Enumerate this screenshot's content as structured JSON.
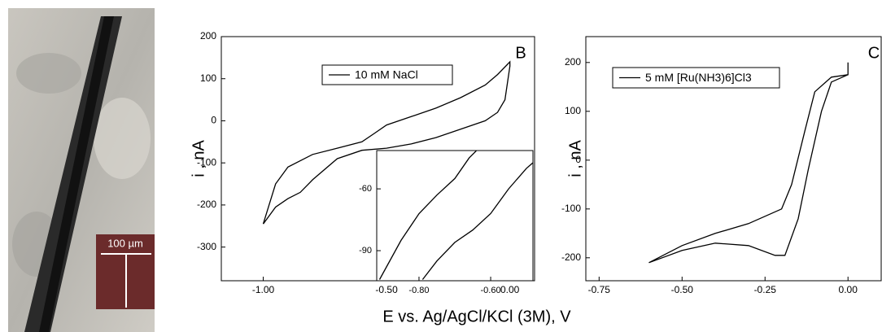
{
  "panel_a": {
    "scale_bar": "100 µm"
  },
  "shared_xlabel": "E vs. Ag/AgCl/KCl (3M), V",
  "chart_data": [
    {
      "type": "line",
      "panel": "B",
      "ylabel": "i , nA",
      "xlim": [
        -1.17,
        0.1
      ],
      "ylim": [
        -380,
        200
      ],
      "xticks": [
        {
          "value": -1,
          "label": "-1.00"
        },
        {
          "value": -0.5,
          "label": "-0.50"
        },
        {
          "value": 0,
          "label": "0.00"
        }
      ],
      "yticks": [
        -300,
        -200,
        -100,
        0,
        100,
        200
      ],
      "series": [
        {
          "name": "10 mM NaCl",
          "color": "#000000",
          "x": [
            -1.0,
            -0.95,
            -0.9,
            -0.8,
            -0.7,
            -0.6,
            -0.55,
            -0.5,
            -0.4,
            -0.3,
            -0.2,
            -0.1,
            -0.05,
            0.0,
            0.0,
            -0.02,
            -0.05,
            -0.1,
            -0.2,
            -0.3,
            -0.4,
            -0.5,
            -0.6,
            -0.7,
            -0.8,
            -0.85,
            -0.9,
            -0.95,
            -1.0
          ],
          "values": [
            -245,
            -150,
            -110,
            -80,
            -65,
            -50,
            -30,
            -10,
            10,
            30,
            55,
            85,
            110,
            140,
            130,
            50,
            20,
            0,
            -20,
            -40,
            -55,
            -65,
            -70,
            -90,
            -140,
            -170,
            -185,
            -205,
            -245
          ]
        }
      ]
    },
    {
      "type": "line",
      "inset": true,
      "xlim": [
        -0.918,
        -0.482
      ],
      "ylim": [
        -104.6,
        -41.4
      ],
      "xticks": [
        {
          "value": -0.8,
          "label": "-0.80"
        },
        {
          "value": -0.6,
          "label": "-0.60"
        }
      ],
      "yticks": [
        -90,
        -60
      ],
      "series": [
        {
          "color": "#000000",
          "x": [
            -0.91,
            -0.85,
            -0.8,
            -0.75,
            -0.7,
            -0.66,
            -0.64,
            null,
            -0.79,
            -0.75,
            -0.7,
            -0.65,
            -0.6,
            -0.55,
            -0.5,
            -0.48
          ],
          "values": [
            -104,
            -85,
            -72,
            -63,
            -55,
            -45,
            -41.5,
            null,
            -104,
            -95,
            -86,
            -80,
            -72,
            -60,
            -50,
            -47
          ]
        }
      ]
    },
    {
      "type": "line",
      "panel": "C",
      "ylabel": "i , nA",
      "xlim": [
        -0.79,
        0.1
      ],
      "ylim": [
        -247,
        253
      ],
      "xticks": [
        {
          "value": -0.75,
          "label": "-0.75"
        },
        {
          "value": -0.5,
          "label": "-0.50"
        },
        {
          "value": -0.25,
          "label": "-0.25"
        },
        {
          "value": 0,
          "label": "0.00"
        }
      ],
      "yticks": [
        -200,
        -100,
        0,
        100,
        200
      ],
      "series": [
        {
          "name": "5 mM [Ru(NH3)6]Cl3",
          "color": "#000000",
          "x": [
            0.0,
            0.0,
            -0.05,
            -0.1,
            -0.13,
            -0.17,
            -0.2,
            -0.3,
            -0.4,
            -0.5,
            -0.6,
            -0.6,
            -0.5,
            -0.4,
            -0.3,
            -0.22,
            -0.19,
            -0.15,
            -0.12,
            -0.08,
            -0.05,
            0.0
          ],
          "values": [
            200,
            175,
            170,
            140,
            60,
            -50,
            -100,
            -130,
            -150,
            -175,
            -210,
            -210,
            -185,
            -170,
            -175,
            -195,
            -195,
            -120,
            -20,
            100,
            160,
            175
          ]
        }
      ]
    }
  ]
}
